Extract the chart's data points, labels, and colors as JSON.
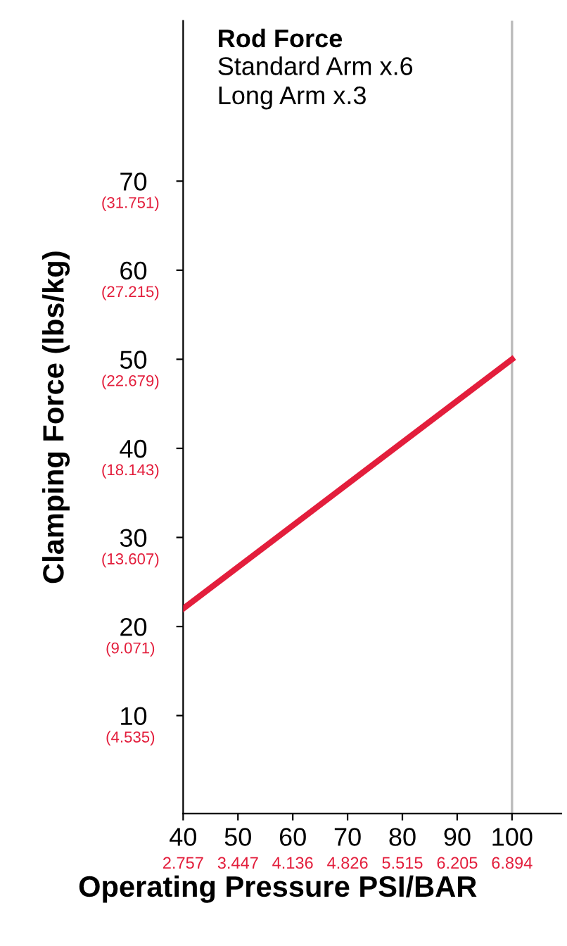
{
  "chart_data": {
    "type": "line",
    "title": "Rod Force",
    "subtitle": "Standard Arm x.6\nLong Arm x.3",
    "xlabel": "Operating Pressure PSI/BAR",
    "y2label": "Clamping Force (lbs/kg)",
    "x": [
      40,
      100
    ],
    "series": [
      {
        "color": "#e31e3c",
        "values": [
          22,
          50
        ]
      }
    ],
    "xlim": [
      40,
      109
    ],
    "ylim": [
      -1,
      88
    ],
    "xticks": [
      40,
      50,
      60,
      70,
      80,
      90,
      100
    ],
    "yticks": [
      10,
      20,
      30,
      40,
      50,
      60,
      70
    ],
    "x2lim": [
      2.757,
      7.515
    ],
    "x2ticks": [
      2.757,
      3.447,
      4.136,
      4.826,
      5.515,
      6.205,
      6.894
    ],
    "y2lim": [
      0.622,
      40.992
    ],
    "y2ticks": [
      {
        "value": 4.535,
        "label": "(4.535)"
      },
      {
        "value": 9.071,
        "label": "(9.071)"
      },
      {
        "value": 13.607,
        "label": "(13.607)"
      },
      {
        "value": 18.143,
        "label": "(18.143)"
      },
      {
        "value": 22.679,
        "label": "(22.679)"
      },
      {
        "value": 27.215,
        "label": "(27.215)"
      },
      {
        "value": 31.751,
        "label": "(31.751)"
      }
    ],
    "ref_lines": [
      {
        "axis": "x",
        "value": 100,
        "color": "#bbbbbb"
      }
    ],
    "grid": false,
    "legend": false
  }
}
